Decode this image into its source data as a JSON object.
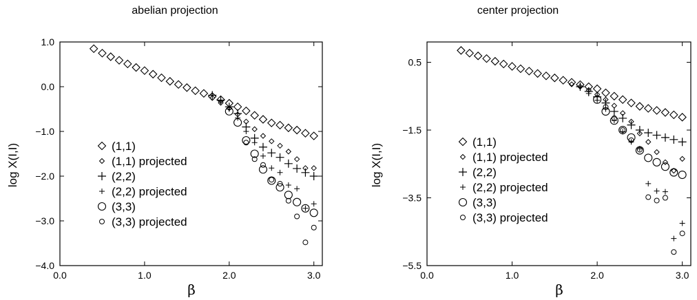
{
  "chart_data": [
    {
      "type": "scatter",
      "title": "abelian projection",
      "xlabel": "β",
      "ylabel": "log X(I,I)",
      "xlim": [
        0.0,
        3.1
      ],
      "ylim": [
        -4.0,
        1.0
      ],
      "xticks": [
        "0.0",
        "1.0",
        "2.0",
        "3.0"
      ],
      "yticks": [
        "1.0",
        "0.0",
        "−1.0",
        "−2.0",
        "−3.0",
        "−4.0"
      ],
      "xtick_values": [
        0,
        1,
        2,
        3
      ],
      "ytick_values": [
        1,
        0,
        -1,
        -2,
        -3,
        -4
      ],
      "grid": false,
      "legend_position": "lower-left",
      "series": [
        {
          "name": "(1,1)",
          "marker": "diamond-large",
          "points": [
            [
              0.4,
              0.85
            ],
            [
              0.5,
              0.75
            ],
            [
              0.6,
              0.67
            ],
            [
              0.7,
              0.59
            ],
            [
              0.8,
              0.51
            ],
            [
              0.9,
              0.43
            ],
            [
              1.0,
              0.36
            ],
            [
              1.1,
              0.28
            ],
            [
              1.2,
              0.2
            ],
            [
              1.3,
              0.12
            ],
            [
              1.4,
              0.05
            ],
            [
              1.5,
              -0.02
            ],
            [
              1.6,
              -0.09
            ],
            [
              1.7,
              -0.15
            ],
            [
              1.8,
              -0.22
            ],
            [
              1.9,
              -0.29
            ],
            [
              2.0,
              -0.37
            ],
            [
              2.1,
              -0.45
            ],
            [
              2.2,
              -0.54
            ],
            [
              2.3,
              -0.64
            ],
            [
              2.4,
              -0.73
            ],
            [
              2.5,
              -0.81
            ],
            [
              2.6,
              -0.86
            ],
            [
              2.7,
              -0.92
            ],
            [
              2.8,
              -0.97
            ],
            [
              2.9,
              -1.04
            ],
            [
              3.0,
              -1.1
            ]
          ]
        },
        {
          "name": "(1,1) projected",
          "marker": "diamond-small",
          "points": [
            [
              1.8,
              -0.25
            ],
            [
              1.9,
              -0.36
            ],
            [
              2.0,
              -0.48
            ],
            [
              2.1,
              -0.62
            ],
            [
              2.2,
              -0.78
            ],
            [
              2.3,
              -0.95
            ],
            [
              2.4,
              -1.1
            ],
            [
              2.5,
              -1.22
            ],
            [
              2.6,
              -1.32
            ],
            [
              2.7,
              -1.45
            ],
            [
              2.8,
              -1.62
            ],
            [
              2.9,
              -1.82
            ],
            [
              3.0,
              -1.82
            ]
          ]
        },
        {
          "name": "(2,2)",
          "marker": "plus-large",
          "points": [
            [
              1.8,
              -0.19
            ],
            [
              1.9,
              -0.3
            ],
            [
              2.0,
              -0.45
            ],
            [
              2.1,
              -0.6
            ],
            [
              2.2,
              -0.9
            ],
            [
              2.3,
              -1.15
            ],
            [
              2.4,
              -1.35
            ],
            [
              2.5,
              -1.48
            ],
            [
              2.6,
              -1.58
            ],
            [
              2.7,
              -1.72
            ],
            [
              2.8,
              -1.83
            ],
            [
              2.9,
              -1.92
            ],
            [
              3.0,
              -2.0
            ]
          ]
        },
        {
          "name": "(2,2) projected",
          "marker": "plus-small",
          "points": [
            [
              1.9,
              -0.32
            ],
            [
              2.0,
              -0.5
            ],
            [
              2.1,
              -0.7
            ],
            [
              2.2,
              -1.0
            ],
            [
              2.3,
              -1.25
            ],
            [
              2.4,
              -1.55
            ],
            [
              2.5,
              -1.82
            ],
            [
              2.6,
              -1.92
            ],
            [
              2.7,
              -2.2
            ],
            [
              2.8,
              -2.28
            ],
            [
              2.9,
              -2.72
            ],
            [
              3.0,
              -2.62
            ]
          ]
        },
        {
          "name": "(3,3)",
          "marker": "circle-large",
          "points": [
            [
              2.0,
              -0.55
            ],
            [
              2.1,
              -0.8
            ],
            [
              2.2,
              -1.2
            ],
            [
              2.3,
              -1.5
            ],
            [
              2.4,
              -1.85
            ],
            [
              2.5,
              -2.1
            ],
            [
              2.6,
              -2.25
            ],
            [
              2.7,
              -2.42
            ],
            [
              2.8,
              -2.58
            ],
            [
              2.9,
              -2.72
            ],
            [
              3.0,
              -2.82
            ]
          ]
        },
        {
          "name": "(3,3) projected",
          "marker": "circle-small",
          "points": [
            [
              2.2,
              -1.25
            ],
            [
              2.3,
              -1.62
            ],
            [
              2.4,
              -1.75
            ],
            [
              2.5,
              -2.08
            ],
            [
              2.6,
              -2.17
            ],
            [
              2.7,
              -2.55
            ],
            [
              2.8,
              -2.9
            ],
            [
              2.9,
              -3.48
            ],
            [
              3.0,
              -3.15
            ]
          ]
        }
      ]
    },
    {
      "type": "scatter",
      "title": "center projection",
      "xlabel": "β",
      "ylabel": "log X(I,I)",
      "xlim": [
        0.0,
        3.1
      ],
      "ylim": [
        -5.5,
        1.1
      ],
      "xticks": [
        "0.0",
        "1.0",
        "2.0",
        "3.0"
      ],
      "yticks": [
        "0.5",
        "−1.5",
        "−3.5",
        "−5.5"
      ],
      "xtick_values": [
        0,
        1,
        2,
        3
      ],
      "ytick_values": [
        0.5,
        -1.5,
        -3.5,
        -5.5
      ],
      "grid": false,
      "legend_position": "lower-left",
      "series": [
        {
          "name": "(1,1)",
          "marker": "diamond-large",
          "points": [
            [
              0.4,
              0.85
            ],
            [
              0.5,
              0.77
            ],
            [
              0.6,
              0.69
            ],
            [
              0.7,
              0.61
            ],
            [
              0.8,
              0.53
            ],
            [
              0.9,
              0.45
            ],
            [
              1.0,
              0.38
            ],
            [
              1.1,
              0.31
            ],
            [
              1.2,
              0.24
            ],
            [
              1.3,
              0.17
            ],
            [
              1.4,
              0.1
            ],
            [
              1.5,
              0.04
            ],
            [
              1.6,
              -0.03
            ],
            [
              1.7,
              -0.09
            ],
            [
              1.8,
              -0.16
            ],
            [
              1.9,
              -0.22
            ],
            [
              2.0,
              -0.28
            ],
            [
              2.1,
              -0.4
            ],
            [
              2.2,
              -0.5
            ],
            [
              2.3,
              -0.6
            ],
            [
              2.4,
              -0.7
            ],
            [
              2.5,
              -0.8
            ],
            [
              2.6,
              -0.86
            ],
            [
              2.7,
              -0.92
            ],
            [
              2.8,
              -0.98
            ],
            [
              2.9,
              -1.05
            ],
            [
              3.0,
              -1.12
            ]
          ]
        },
        {
          "name": "(1,1) projected",
          "marker": "diamond-small",
          "points": [
            [
              1.7,
              -0.15
            ],
            [
              1.8,
              -0.22
            ],
            [
              1.9,
              -0.32
            ],
            [
              2.0,
              -0.45
            ],
            [
              2.1,
              -0.6
            ],
            [
              2.2,
              -0.78
            ],
            [
              2.3,
              -1.0
            ],
            [
              2.4,
              -1.25
            ],
            [
              2.5,
              -1.6
            ],
            [
              2.6,
              -1.85
            ],
            [
              2.7,
              -2.15
            ],
            [
              2.8,
              -2.45
            ],
            [
              2.9,
              -2.7
            ],
            [
              3.0,
              -2.35
            ]
          ]
        },
        {
          "name": "(2,2)",
          "marker": "plus-large",
          "points": [
            [
              1.8,
              -0.22
            ],
            [
              1.9,
              -0.36
            ],
            [
              2.0,
              -0.52
            ],
            [
              2.1,
              -0.7
            ],
            [
              2.2,
              -0.95
            ],
            [
              2.3,
              -1.15
            ],
            [
              2.4,
              -1.35
            ],
            [
              2.5,
              -1.5
            ],
            [
              2.6,
              -1.58
            ],
            [
              2.7,
              -1.65
            ],
            [
              2.8,
              -1.72
            ],
            [
              2.9,
              -1.78
            ],
            [
              3.0,
              -1.85
            ]
          ]
        },
        {
          "name": "(2,2) projected",
          "marker": "plus-small",
          "points": [
            [
              1.9,
              -0.42
            ],
            [
              2.0,
              -0.62
            ],
            [
              2.1,
              -0.88
            ],
            [
              2.2,
              -1.22
            ],
            [
              2.3,
              -1.55
            ],
            [
              2.4,
              -1.85
            ],
            [
              2.5,
              -2.05
            ],
            [
              2.6,
              -3.08
            ],
            [
              2.7,
              -3.3
            ],
            [
              2.8,
              -3.32
            ],
            [
              2.9,
              -4.7
            ],
            [
              3.0,
              -4.25
            ]
          ]
        },
        {
          "name": "(3,3)",
          "marker": "circle-large",
          "points": [
            [
              2.0,
              -0.6
            ],
            [
              2.1,
              -0.95
            ],
            [
              2.2,
              -1.22
            ],
            [
              2.3,
              -1.5
            ],
            [
              2.4,
              -1.72
            ],
            [
              2.5,
              -2.1
            ],
            [
              2.6,
              -2.32
            ],
            [
              2.7,
              -2.45
            ],
            [
              2.8,
              -2.58
            ],
            [
              2.9,
              -2.75
            ],
            [
              3.0,
              -2.82
            ]
          ]
        },
        {
          "name": "(3,3) projected",
          "marker": "circle-small",
          "points": [
            [
              2.1,
              -0.82
            ],
            [
              2.2,
              -1.15
            ],
            [
              2.3,
              -1.5
            ],
            [
              2.4,
              -1.8
            ],
            [
              2.5,
              -2.08
            ],
            [
              2.6,
              -3.48
            ],
            [
              2.7,
              -3.58
            ],
            [
              2.8,
              -3.5
            ],
            [
              2.9,
              -5.1
            ],
            [
              3.0,
              -4.55
            ]
          ]
        }
      ]
    }
  ]
}
